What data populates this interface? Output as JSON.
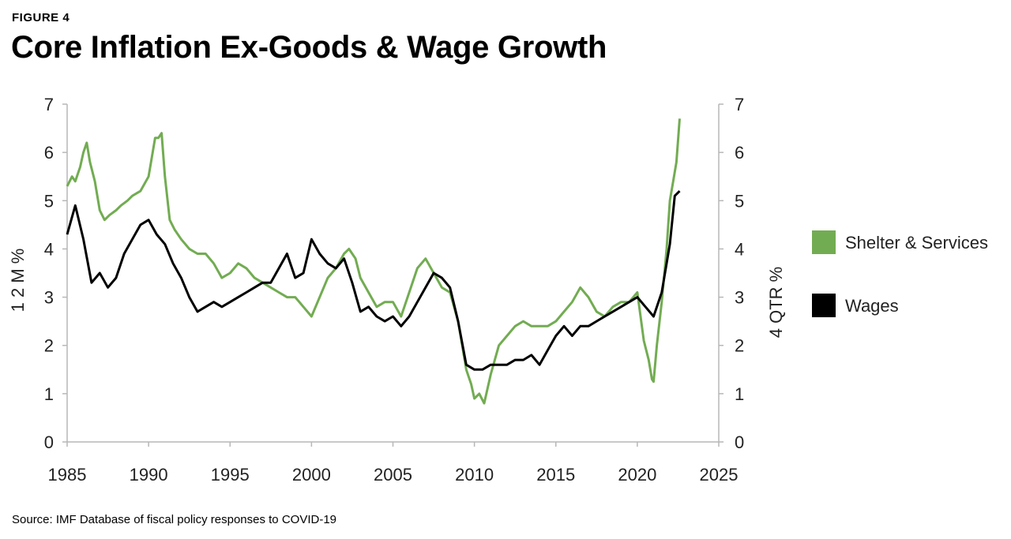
{
  "figure_label": "FIGURE 4",
  "title": "Core Inflation Ex-Goods & Wage Growth",
  "source": "Source: IMF Database of fiscal policy responses to COVID-19",
  "chart_data": {
    "type": "line",
    "title": "Core Inflation Ex-Goods & Wage Growth",
    "xlabel": "",
    "ylabel_left": "1 2 M %",
    "ylabel_right": "4 QTR %",
    "xlim": [
      1985,
      2025
    ],
    "ylim_left": [
      0,
      7
    ],
    "ylim_right": [
      0,
      7
    ],
    "x_ticks": [
      1985,
      1990,
      1995,
      2000,
      2005,
      2010,
      2015,
      2020,
      2025
    ],
    "y_ticks_left": [
      0,
      1,
      2,
      3,
      4,
      5,
      6,
      7
    ],
    "y_ticks_right": [
      0,
      1,
      2,
      3,
      4,
      5,
      6,
      7
    ],
    "grid": false,
    "legend_position": "right",
    "colors": {
      "shelter": "#72ac52",
      "wages": "#000000",
      "axis": "#b7b7b7"
    },
    "series": [
      {
        "name": "Shelter & Services",
        "axis": "left",
        "x": [
          1985.0,
          1985.3,
          1985.5,
          1985.8,
          1986.0,
          1986.2,
          1986.4,
          1986.7,
          1987.0,
          1987.3,
          1987.6,
          1988.0,
          1988.3,
          1988.7,
          1989.0,
          1989.5,
          1990.0,
          1990.4,
          1990.6,
          1990.8,
          1991.0,
          1991.3,
          1991.6,
          1992.0,
          1992.5,
          1993.0,
          1993.5,
          1994.0,
          1994.5,
          1995.0,
          1995.5,
          1996.0,
          1996.5,
          1997.0,
          1997.5,
          1998.0,
          1998.5,
          1999.0,
          1999.5,
          2000.0,
          2000.5,
          2001.0,
          2001.5,
          2002.0,
          2002.3,
          2002.7,
          2003.0,
          2003.5,
          2004.0,
          2004.5,
          2005.0,
          2005.5,
          2006.0,
          2006.5,
          2007.0,
          2007.5,
          2008.0,
          2008.5,
          2009.0,
          2009.5,
          2009.8,
          2010.0,
          2010.3,
          2010.6,
          2011.0,
          2011.5,
          2012.0,
          2012.5,
          2013.0,
          2013.5,
          2014.0,
          2014.5,
          2015.0,
          2015.5,
          2016.0,
          2016.5,
          2017.0,
          2017.5,
          2018.0,
          2018.5,
          2019.0,
          2019.5,
          2020.0,
          2020.2,
          2020.4,
          2020.7,
          2020.9,
          2021.0,
          2021.2,
          2021.5,
          2021.8,
          2022.0,
          2022.2,
          2022.4,
          2022.6
        ],
        "values": [
          5.3,
          5.5,
          5.4,
          5.7,
          6.0,
          6.2,
          5.8,
          5.4,
          4.8,
          4.6,
          4.7,
          4.8,
          4.9,
          5.0,
          5.1,
          5.2,
          5.5,
          6.3,
          6.3,
          6.4,
          5.5,
          4.6,
          4.4,
          4.2,
          4.0,
          3.9,
          3.9,
          3.7,
          3.4,
          3.5,
          3.7,
          3.6,
          3.4,
          3.3,
          3.2,
          3.1,
          3.0,
          3.0,
          2.8,
          2.6,
          3.0,
          3.4,
          3.6,
          3.9,
          4.0,
          3.8,
          3.4,
          3.1,
          2.8,
          2.9,
          2.9,
          2.6,
          3.1,
          3.6,
          3.8,
          3.5,
          3.2,
          3.1,
          2.5,
          1.5,
          1.2,
          0.9,
          1.0,
          0.8,
          1.4,
          2.0,
          2.2,
          2.4,
          2.5,
          2.4,
          2.4,
          2.4,
          2.5,
          2.7,
          2.9,
          3.2,
          3.0,
          2.7,
          2.6,
          2.8,
          2.9,
          2.9,
          3.1,
          2.6,
          2.1,
          1.7,
          1.3,
          1.25,
          2.0,
          2.9,
          4.0,
          5.0,
          5.4,
          5.8,
          6.7
        ]
      },
      {
        "name": "Wages",
        "axis": "right",
        "x": [
          1985.0,
          1985.5,
          1986.0,
          1986.5,
          1987.0,
          1987.5,
          1988.0,
          1988.5,
          1989.0,
          1989.5,
          1990.0,
          1990.5,
          1991.0,
          1991.5,
          1992.0,
          1992.5,
          1993.0,
          1993.5,
          1994.0,
          1994.5,
          1995.0,
          1995.5,
          1996.0,
          1996.5,
          1997.0,
          1997.5,
          1998.0,
          1998.5,
          1999.0,
          1999.5,
          2000.0,
          2000.5,
          2001.0,
          2001.5,
          2002.0,
          2002.5,
          2003.0,
          2003.5,
          2004.0,
          2004.5,
          2005.0,
          2005.5,
          2006.0,
          2006.5,
          2007.0,
          2007.5,
          2008.0,
          2008.5,
          2009.0,
          2009.5,
          2010.0,
          2010.5,
          2011.0,
          2011.5,
          2012.0,
          2012.5,
          2013.0,
          2013.5,
          2014.0,
          2014.5,
          2015.0,
          2015.5,
          2016.0,
          2016.5,
          2017.0,
          2017.5,
          2018.0,
          2018.5,
          2019.0,
          2019.5,
          2020.0,
          2020.5,
          2021.0,
          2021.5,
          2022.0,
          2022.3,
          2022.6
        ],
        "values": [
          4.3,
          4.9,
          4.2,
          3.3,
          3.5,
          3.2,
          3.4,
          3.9,
          4.2,
          4.5,
          4.6,
          4.3,
          4.1,
          3.7,
          3.4,
          3.0,
          2.7,
          2.8,
          2.9,
          2.8,
          2.9,
          3.0,
          3.1,
          3.2,
          3.3,
          3.3,
          3.6,
          3.9,
          3.4,
          3.5,
          4.2,
          3.9,
          3.7,
          3.6,
          3.8,
          3.3,
          2.7,
          2.8,
          2.6,
          2.5,
          2.6,
          2.4,
          2.6,
          2.9,
          3.2,
          3.5,
          3.4,
          3.2,
          2.5,
          1.6,
          1.5,
          1.5,
          1.6,
          1.6,
          1.6,
          1.7,
          1.7,
          1.8,
          1.6,
          1.9,
          2.2,
          2.4,
          2.2,
          2.4,
          2.4,
          2.5,
          2.6,
          2.7,
          2.8,
          2.9,
          3.0,
          2.8,
          2.6,
          3.1,
          4.1,
          5.1,
          5.2
        ]
      }
    ]
  }
}
